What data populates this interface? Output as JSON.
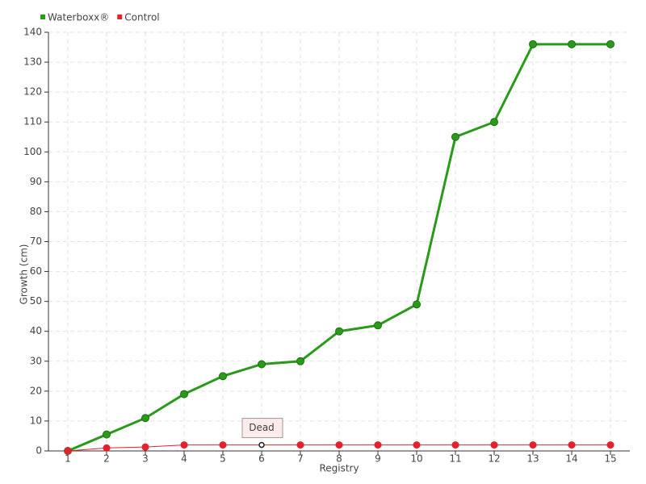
{
  "chart_data": {
    "type": "line",
    "x_label": "Registry",
    "y_label": "Growth (cm)",
    "x": [
      1,
      2,
      3,
      4,
      5,
      6,
      7,
      8,
      9,
      10,
      11,
      12,
      13,
      14,
      15
    ],
    "xlim": [
      0.5,
      15.5
    ],
    "xticks": [
      1,
      2,
      3,
      4,
      5,
      6,
      7,
      8,
      9,
      10,
      11,
      12,
      13,
      14,
      15
    ],
    "ylim": [
      0,
      140
    ],
    "yticks": [
      0,
      10,
      20,
      30,
      40,
      50,
      60,
      70,
      80,
      90,
      100,
      110,
      120,
      130,
      140
    ],
    "grid": true,
    "legend": "top-left",
    "series": [
      {
        "name": "Waterboxx®",
        "color": "#2a9a1a",
        "values": [
          0,
          5.5,
          11,
          19,
          25,
          29,
          30,
          40,
          42,
          49,
          105,
          110,
          136,
          136,
          136
        ]
      },
      {
        "name": "Control",
        "color": "#e8202a",
        "values": [
          0,
          1,
          1.3,
          2,
          2,
          2,
          2,
          2,
          2,
          2,
          2,
          2,
          2,
          2,
          2
        ]
      }
    ],
    "annotations": [
      {
        "text": "Dead",
        "x": 6,
        "y": 2,
        "series": 1
      }
    ]
  }
}
